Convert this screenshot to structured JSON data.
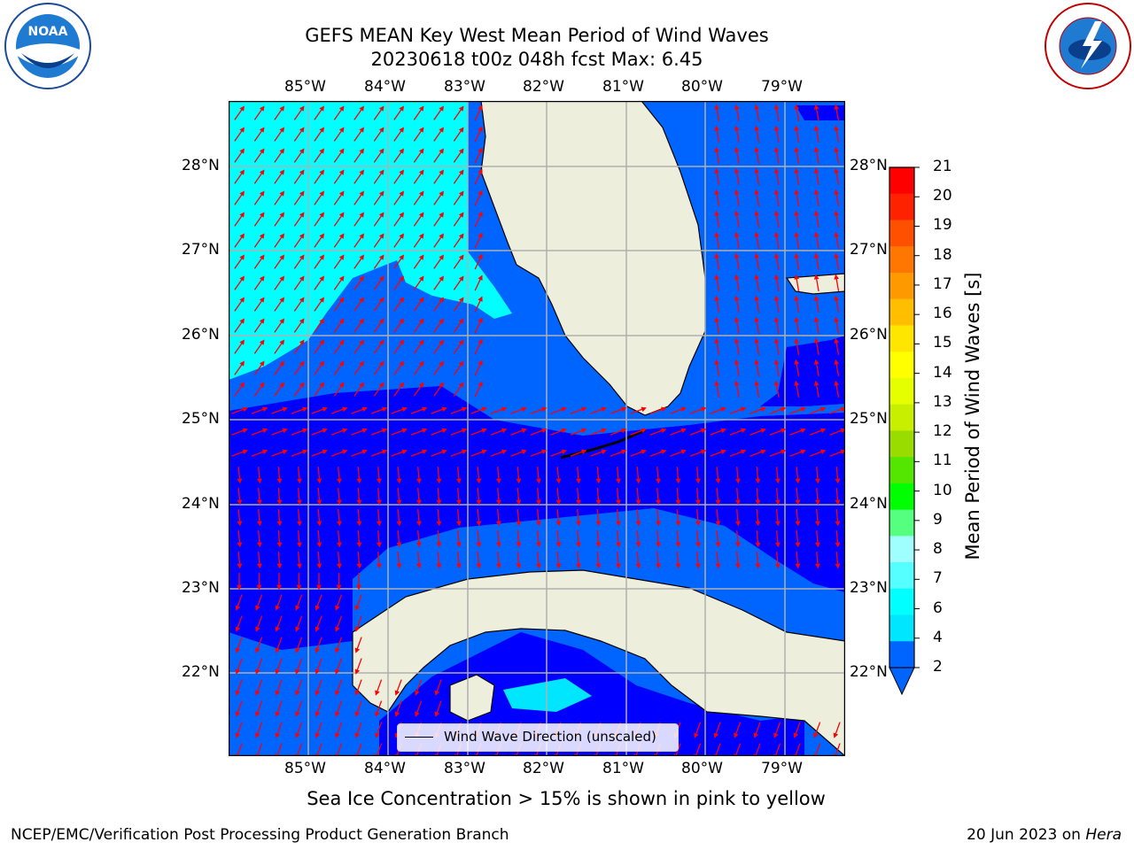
{
  "title_line1": "GEFS MEAN Key West Mean Period of Wind Waves",
  "title_line2": "20230618 t00z 048h fcst   Max: 6.45",
  "lon_labels": [
    "85°W",
    "84°W",
    "83°W",
    "82°W",
    "81°W",
    "80°W",
    "79°W"
  ],
  "lat_labels": [
    "28°N",
    "27°N",
    "26°N",
    "25°N",
    "24°N",
    "23°N",
    "22°N"
  ],
  "colorbar": {
    "label": "Mean Period of Wind Waves [s]",
    "ticks": [
      "21",
      "20",
      "19",
      "18",
      "17",
      "16",
      "15",
      "14",
      "13",
      "12",
      "11",
      "10",
      "9",
      "8",
      "7",
      "6",
      "4",
      "2"
    ],
    "colors": [
      "#0064ff",
      "#00e6ff",
      "#00ffff",
      "#55ffff",
      "#9fffff",
      "#55ff7f",
      "#00ff00",
      "#55e600",
      "#99dd00",
      "#c8ee00",
      "#e6ff00",
      "#ffff00",
      "#ffe600",
      "#ffbf00",
      "#ff9900",
      "#ff7700",
      "#ff5000",
      "#ff2200",
      "#ff0000"
    ]
  },
  "legend_label": "Wind Wave Direction (unscaled)",
  "ice_note": "Sea Ice Concentration > 15% is shown in pink to yellow",
  "footer_left": "NCEP/EMC/Verification Post Processing Product Generation Branch",
  "footer_date": "20 Jun 2023 on ",
  "footer_host": "Hera",
  "logos": {
    "left": "NOAA",
    "right": "NATIONAL WEATHER SERVICE"
  },
  "field_colors": {
    "deep_blue": "#0000ff",
    "mid_blue": "#0064ff",
    "cyan": "#00ffff",
    "land": "#eeeedd",
    "arrow": "#ff0000"
  }
}
